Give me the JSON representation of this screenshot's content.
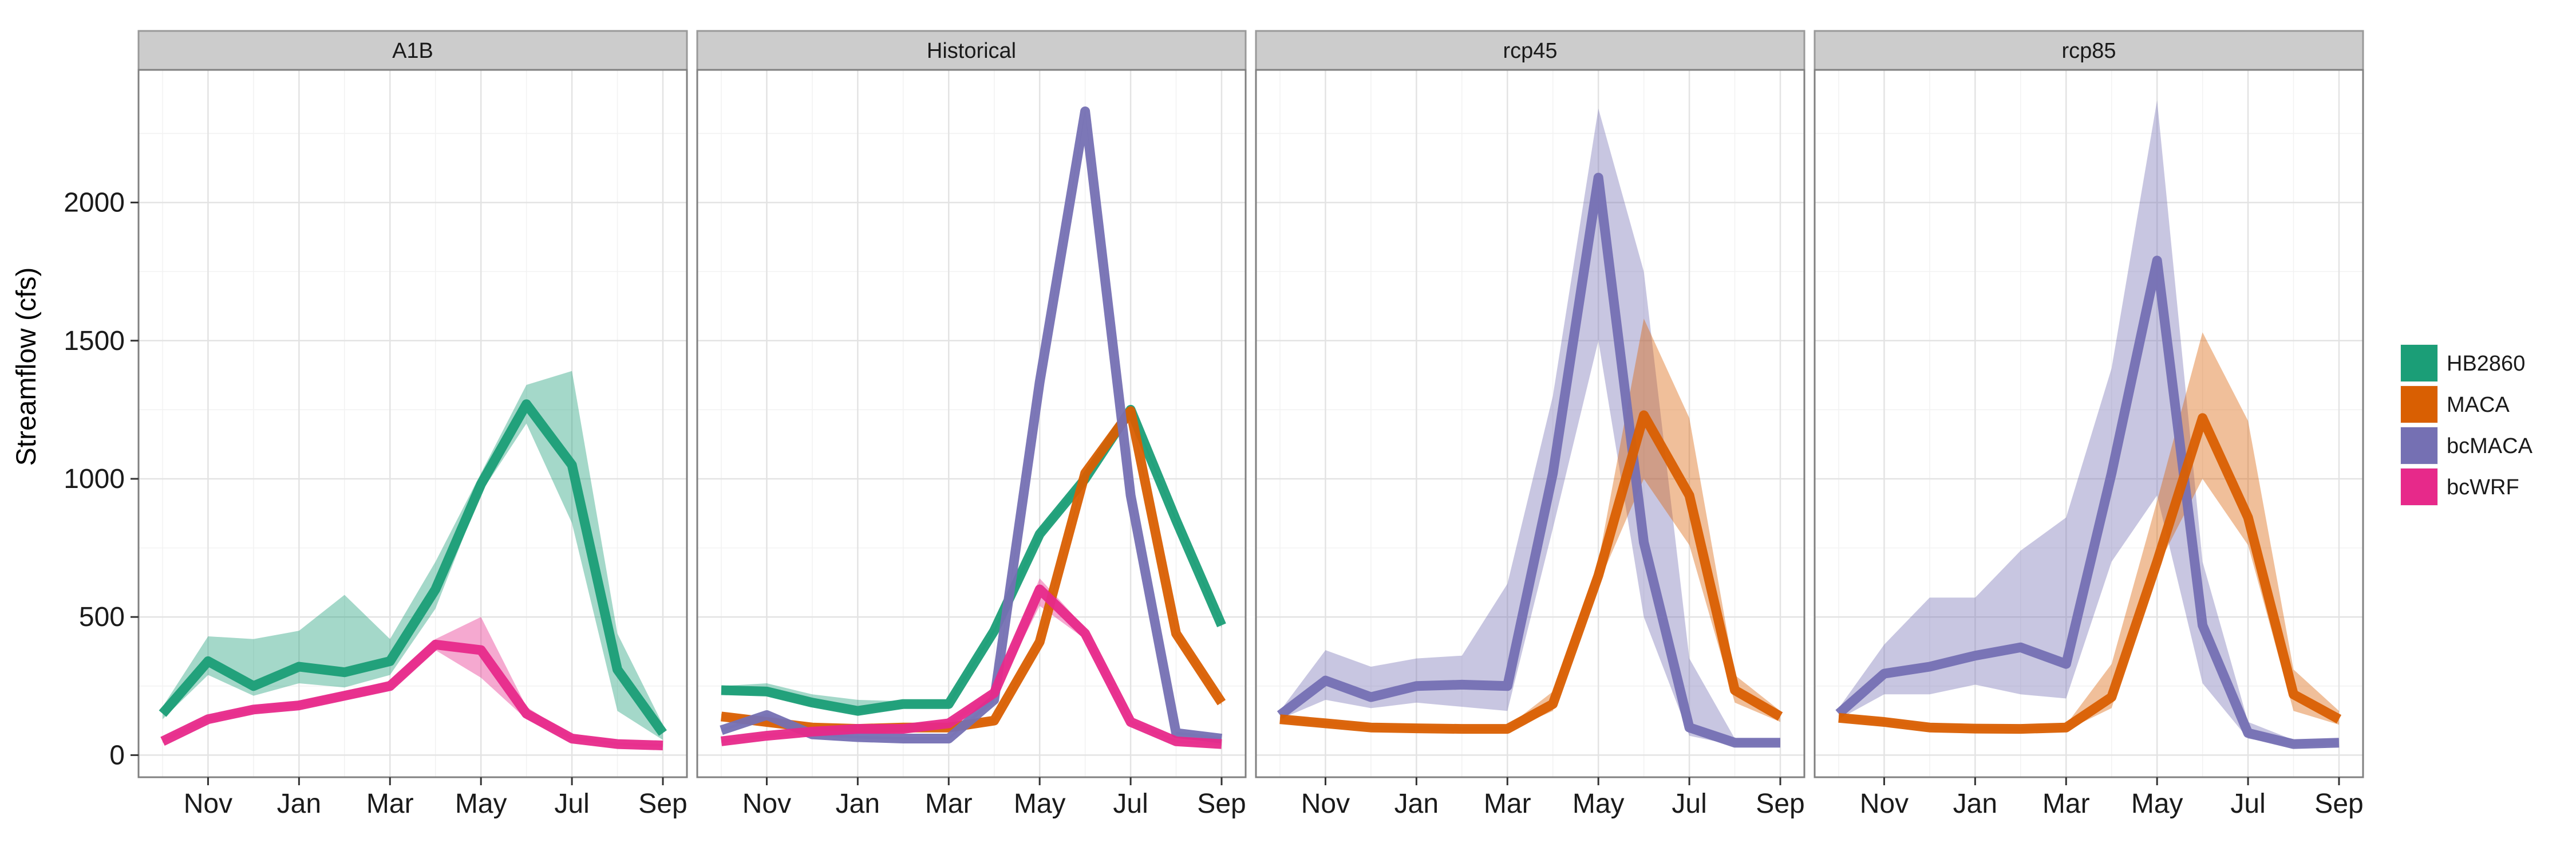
{
  "chart_data": {
    "type": "line",
    "ylabel": "Streamflow (cfs)",
    "xlabel": "",
    "ylim": [
      -80,
      2480
    ],
    "y_ticks": [
      0,
      500,
      1000,
      1500,
      2000
    ],
    "x_tick_labels": [
      "Nov",
      "Jan",
      "Mar",
      "May",
      "Jul",
      "Sep"
    ],
    "x_tick_index": [
      1,
      3,
      5,
      7,
      9,
      11
    ],
    "months": [
      "Oct",
      "Nov",
      "Dec",
      "Jan",
      "Feb",
      "Mar",
      "Apr",
      "May",
      "Jun",
      "Jul",
      "Aug",
      "Sep"
    ],
    "grid": true,
    "legend_position": "right",
    "legend": [
      {
        "name": "HB2860",
        "color": "#1B9E77"
      },
      {
        "name": "MACA",
        "color": "#D95F02"
      },
      {
        "name": "bcMACA",
        "color": "#7570B3"
      },
      {
        "name": "bcWRF",
        "color": "#E7298A"
      }
    ],
    "panels": [
      {
        "title": "A1B",
        "series": [
          {
            "name": "HB2860",
            "values": [
              150,
              340,
              250,
              320,
              300,
              340,
              600,
              980,
              1270,
              1050,
              310,
              80
            ],
            "lower": [
              130,
              290,
              215,
              260,
              245,
              290,
              530,
              950,
              1200,
              840,
              160,
              55
            ],
            "upper": [
              175,
              430,
              420,
              450,
              580,
              420,
              700,
              1020,
              1340,
              1390,
              440,
              110
            ]
          },
          {
            "name": "bcWRF",
            "values": [
              50,
              130,
              165,
              180,
              215,
              250,
              400,
              380,
              150,
              60,
              40,
              35
            ],
            "lower": [
              45,
              120,
              155,
              170,
              200,
              235,
              380,
              280,
              130,
              55,
              35,
              30
            ],
            "upper": [
              60,
              140,
              175,
              195,
              230,
              270,
              420,
              500,
              175,
              70,
              45,
              40
            ]
          }
        ]
      },
      {
        "title": "Historical",
        "series": [
          {
            "name": "HB2860",
            "values": [
              235,
              230,
              190,
              160,
              185,
              185,
              450,
              800,
              1000,
              1250,
              850,
              470
            ],
            "lower": [
              220,
              215,
              175,
              150,
              170,
              175,
              440,
              780,
              990,
              1240,
              840,
              460
            ],
            "upper": [
              250,
              260,
              220,
              200,
              195,
              200,
              460,
              820,
              1010,
              1260,
              860,
              480
            ]
          },
          {
            "name": "MACA",
            "values": [
              140,
              120,
              100,
              95,
              100,
              100,
              125,
              410,
              1020,
              1245,
              440,
              190
            ],
            "lower": [
              130,
              110,
              92,
              88,
              92,
              92,
              115,
              400,
              1010,
              1235,
              430,
              180
            ],
            "upper": [
              150,
              130,
              108,
              102,
              108,
              108,
              135,
              420,
              1030,
              1255,
              450,
              200
            ]
          },
          {
            "name": "bcMACA",
            "values": [
              90,
              145,
              75,
              65,
              60,
              60,
              200,
              1350,
              2330,
              940,
              80,
              60
            ],
            "lower": [
              85,
              138,
              70,
              60,
              55,
              55,
              190,
              1340,
              2320,
              930,
              75,
              55
            ],
            "upper": [
              95,
              152,
              80,
              70,
              65,
              65,
              210,
              1360,
              2340,
              950,
              85,
              65
            ]
          },
          {
            "name": "bcWRF",
            "values": [
              50,
              70,
              85,
              95,
              95,
              115,
              225,
              600,
              440,
              120,
              50,
              40
            ],
            "lower": [
              45,
              62,
              78,
              88,
              88,
              105,
              210,
              540,
              420,
              112,
              45,
              35
            ],
            "upper": [
              55,
              78,
              92,
              102,
              102,
              125,
              240,
              640,
              460,
              128,
              55,
              45
            ]
          }
        ]
      },
      {
        "title": "rcp45",
        "series": [
          {
            "name": "bcMACA",
            "values": [
              145,
              270,
              210,
              250,
              255,
              250,
              1020,
              2090,
              770,
              100,
              45,
              45
            ],
            "lower": [
              130,
              200,
              170,
              190,
              175,
              160,
              820,
              1500,
              500,
              70,
              35,
              35
            ],
            "upper": [
              160,
              380,
              320,
              350,
              360,
              620,
              1300,
              2340,
              1750,
              350,
              60,
              55
            ]
          },
          {
            "name": "MACA",
            "values": [
              130,
              115,
              100,
              97,
              95,
              95,
              185,
              650,
              1230,
              940,
              235,
              140
            ],
            "lower": [
              120,
              105,
              92,
              88,
              87,
              87,
              160,
              620,
              1000,
              760,
              190,
              120
            ],
            "upper": [
              140,
              125,
              108,
              105,
              103,
              103,
              230,
              700,
              1580,
              1220,
              290,
              160
            ]
          }
        ]
      },
      {
        "title": "rcp85",
        "series": [
          {
            "name": "bcMACA",
            "values": [
              150,
              295,
              320,
              360,
              390,
              330,
              1020,
              1790,
              470,
              80,
              40,
              45
            ],
            "lower": [
              130,
              220,
              220,
              255,
              220,
              205,
              700,
              940,
              260,
              60,
              30,
              35
            ],
            "upper": [
              170,
              400,
              570,
              570,
              740,
              860,
              1400,
              2370,
              700,
              120,
              55,
              60
            ]
          },
          {
            "name": "MACA",
            "values": [
              135,
              120,
              100,
              96,
              95,
              100,
              210,
              700,
              1220,
              860,
              220,
              130
            ],
            "lower": [
              125,
              110,
              92,
              88,
              87,
              90,
              170,
              680,
              1000,
              760,
              160,
              110
            ],
            "upper": [
              145,
              130,
              108,
              105,
              103,
              110,
              330,
              920,
              1530,
              1210,
              310,
              160
            ]
          }
        ]
      }
    ]
  }
}
